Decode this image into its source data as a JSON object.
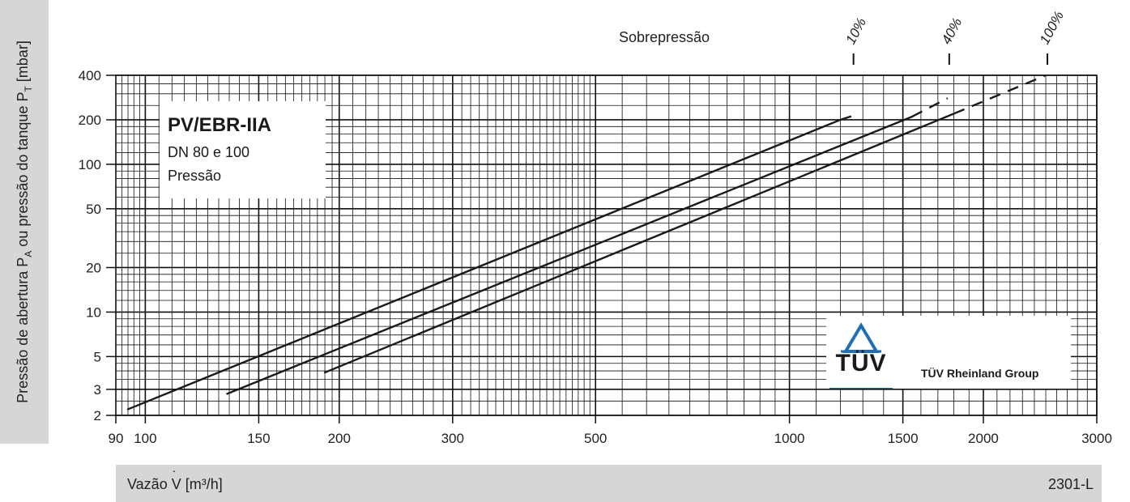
{
  "chart_data": {
    "type": "line",
    "title": "PV/EBR-IIA",
    "subtitle_lines": [
      "DN 80 e 100",
      "Pressão"
    ],
    "xlabel": "Vazão V [m³/h]",
    "ylabel": "Pressão de abertura PA ou pressão do tanque PT [mbar]",
    "x_scale": "log",
    "y_scale": "log",
    "xlim": [
      90,
      3000
    ],
    "ylim": [
      2,
      400
    ],
    "x_ticks": [
      90,
      100,
      150,
      200,
      300,
      500,
      1000,
      1500,
      2000,
      3000
    ],
    "y_ticks": [
      2,
      3,
      5,
      10,
      20,
      50,
      100,
      200,
      400
    ],
    "grid": true,
    "top_annotation": "Sobrepressão",
    "series": [
      {
        "name": "10%",
        "solid": [
          [
            94,
            2.2
          ],
          [
            1200,
            200
          ]
        ],
        "dashed": [
          [
            1200,
            200
          ],
          [
            1250,
            212
          ]
        ]
      },
      {
        "name": "40%",
        "solid": [
          [
            134,
            2.8
          ],
          [
            1550,
            210
          ]
        ],
        "dashed": [
          [
            1550,
            210
          ],
          [
            1760,
            280
          ]
        ]
      },
      {
        "name": "100%",
        "solid": [
          [
            190,
            3.9
          ],
          [
            1800,
            220
          ]
        ],
        "dashed": [
          [
            1800,
            220
          ],
          [
            2500,
            400
          ]
        ]
      }
    ]
  },
  "labels": {
    "ylabel_a": "Pressão de abertura P",
    "ylabel_a_sub": "A",
    "ylabel_b": " ou pressão do tanque P",
    "ylabel_b_sub": "T",
    "ylabel_c": " [mbar]",
    "xlabel_a": "Vazão ",
    "xlabel_v": "V",
    "xlabel_b": " [m³/h]",
    "figure_code": "2301-L"
  },
  "logo": {
    "brand": "TÜV",
    "group": "TÜV Rheinland Group",
    "accent": "#1e6fb8"
  }
}
